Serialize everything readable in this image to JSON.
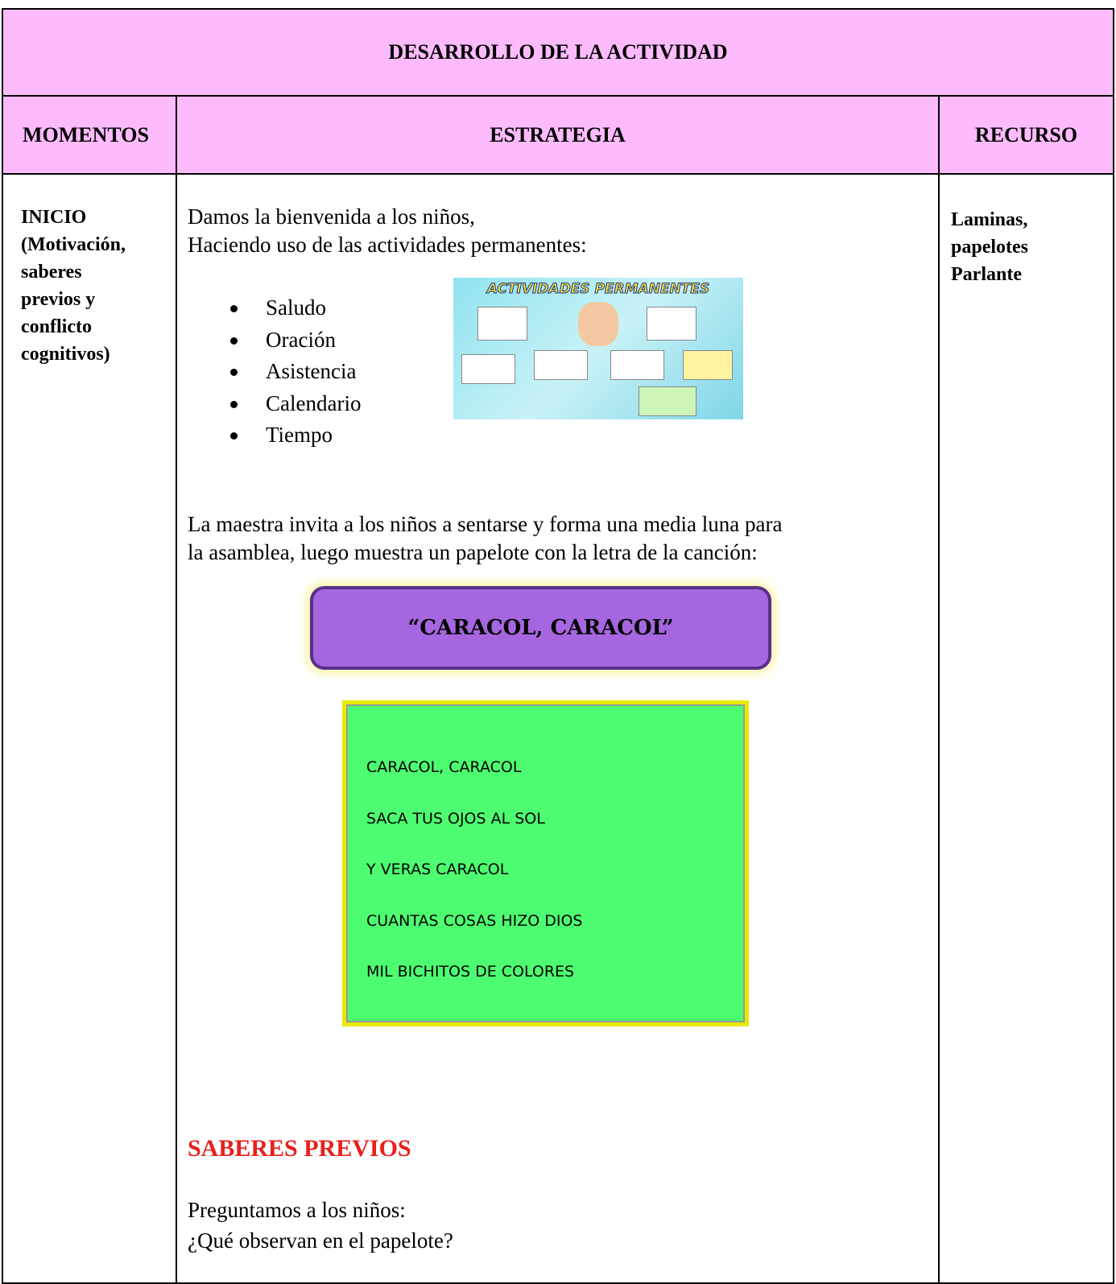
{
  "header": {
    "title": "DESARROLLO DE LA ACTIVIDAD"
  },
  "columns": [
    "MOMENTOS",
    "ESTRATEGIA",
    "RECURSO"
  ],
  "momento": [
    "INICIO",
    "(Motivación,",
    "saberes",
    "previos y",
    "conflicto",
    "cognitivos)"
  ],
  "estrategia": {
    "intro": [
      "Damos la bienvenida a los niños,",
      "Haciendo uso de las actividades permanentes:"
    ],
    "bullets": [
      "Saludo",
      "Oración",
      "Asistencia",
      "Calendario",
      "Tiempo"
    ],
    "image_title": "ACTIVIDADES PERMANENTES",
    "paragraph": [
      "La maestra invita a los niños a sentarse y forma una media luna para",
      "la asamblea, luego muestra un papelote con la letra de la canción:"
    ],
    "song_title": "“CARACOL, CARACOL”",
    "song_lines": [
      "CARACOL, CARACOL",
      "SACA TUS OJOS AL SOL",
      "Y VERAS CARACOL",
      "CUANTAS COSAS HIZO DIOS",
      "MIL BICHITOS DE COLORES"
    ],
    "saberes_heading": "SABERES PREVIOS",
    "saberes": [
      "Preguntamos a los niños:",
      "¿Qué observan en el papelote?"
    ]
  },
  "recurso": [
    "Laminas,",
    "papelotes",
    "Parlante"
  ]
}
